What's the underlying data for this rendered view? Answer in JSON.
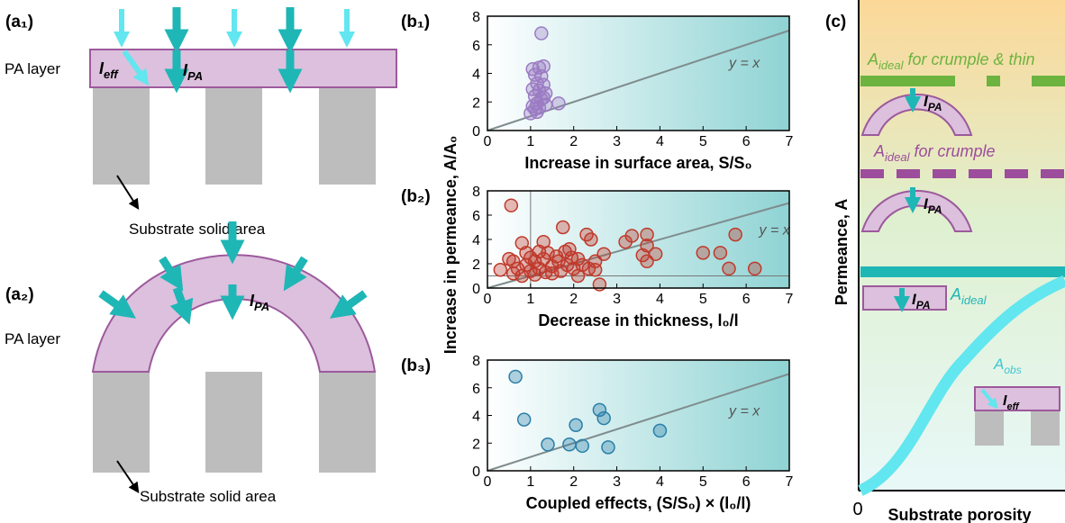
{
  "chart_data": [
    {
      "type": "scatter",
      "panel_label": "(b₁)",
      "x_label": "Increase in surface area, S/S₀",
      "annotation": "y = x",
      "xlim": [
        0,
        7
      ],
      "ylim": [
        0,
        8
      ],
      "xticks": [
        0,
        1,
        2,
        3,
        4,
        5,
        6,
        7
      ],
      "yticks": [
        0,
        2,
        4,
        6,
        8
      ],
      "series": [
        {
          "color": "#9b7bc4",
          "x": [
            1.25,
            1.05,
            1.2,
            1.3,
            1.1,
            1.25,
            1.15,
            1.3,
            1.05,
            1.2,
            1.35,
            1.1,
            1.25,
            1.3,
            1.15,
            1.05,
            1.2,
            1.35,
            1.65,
            1.0,
            1.15,
            1.1
          ],
          "values": [
            6.8,
            4.3,
            4.4,
            4.5,
            3.9,
            3.8,
            3.3,
            3.2,
            2.9,
            2.8,
            2.6,
            2.4,
            2.2,
            2.3,
            1.9,
            1.7,
            1.6,
            1.8,
            1.9,
            1.2,
            1.3,
            1.5
          ]
        }
      ]
    },
    {
      "type": "scatter",
      "panel_label": "(b₂)",
      "x_label": "Decrease in thickness, l₀/l",
      "y_label": "Increase in permeance, A/A₀",
      "annotation": "y = x",
      "xlim": [
        0,
        7
      ],
      "ylim": [
        0,
        8
      ],
      "xticks": [
        0,
        1,
        2,
        3,
        4,
        5,
        6,
        7
      ],
      "yticks": [
        0,
        2,
        4,
        6,
        8
      ],
      "reference_lines": {
        "x": 1,
        "y": 1
      },
      "series": [
        {
          "color": "#c0392b",
          "x": [
            0.55,
            0.3,
            0.5,
            0.6,
            0.6,
            0.7,
            0.8,
            0.8,
            0.9,
            0.9,
            1.0,
            1.0,
            1.1,
            1.1,
            1.2,
            1.2,
            1.3,
            1.3,
            1.35,
            1.4,
            1.5,
            1.5,
            1.6,
            1.65,
            1.7,
            1.75,
            1.8,
            1.85,
            1.9,
            1.95,
            2.0,
            2.1,
            2.1,
            2.2,
            2.3,
            2.35,
            2.4,
            2.5,
            2.5,
            2.6,
            2.7,
            3.2,
            3.35,
            3.6,
            3.7,
            3.7,
            3.7,
            3.9,
            5.0,
            5.4,
            5.6,
            5.75,
            6.2
          ],
          "values": [
            6.8,
            1.5,
            2.4,
            2.2,
            1.2,
            1.6,
            3.7,
            1.0,
            2.9,
            1.9,
            2.5,
            1.4,
            1.1,
            2.2,
            3.0,
            1.6,
            2.4,
            3.8,
            1.3,
            2.9,
            1.8,
            1.2,
            2.6,
            2.2,
            1.4,
            5.0,
            3.0,
            1.9,
            3.2,
            2.5,
            1.6,
            2.4,
            1.0,
            1.9,
            4.4,
            1.6,
            4.0,
            2.2,
            1.5,
            0.3,
            2.8,
            3.8,
            4.3,
            2.7,
            2.2,
            3.5,
            4.4,
            2.8,
            2.9,
            2.9,
            1.6,
            4.4,
            1.6
          ]
        }
      ]
    },
    {
      "type": "scatter",
      "panel_label": "(b₃)",
      "x_label": "Coupled effects, (S/S₀) × (l₀/l)",
      "annotation": "y = x",
      "xlim": [
        0,
        7
      ],
      "ylim": [
        0,
        8
      ],
      "xticks": [
        0,
        1,
        2,
        3,
        4,
        5,
        6,
        7
      ],
      "yticks": [
        0,
        2,
        4,
        6,
        8
      ],
      "series": [
        {
          "color": "#2a7fa8",
          "x": [
            0.65,
            0.85,
            1.4,
            1.9,
            2.05,
            2.2,
            2.6,
            2.7,
            2.8,
            4.0
          ],
          "values": [
            6.8,
            3.7,
            1.9,
            1.9,
            3.3,
            1.8,
            4.4,
            3.8,
            1.7,
            2.9
          ]
        }
      ]
    }
  ],
  "panel_a": {
    "label_a1": "(a₁)",
    "label_a2": "(a₂)",
    "layer_1": "PA layer",
    "layer_2": "PA layer",
    "ieff": {
      "base": "I",
      "sub": "eff"
    },
    "ipa_1": {
      "base": "I",
      "sub": "PA"
    },
    "ipa_2": {
      "base": "I",
      "sub": "PA"
    },
    "substrate_1": "Substrate solid area",
    "substrate_2": "Substrate solid area"
  },
  "panel_c": {
    "label": "(c)",
    "y_label": "Permeance, A",
    "x_label": "Substrate porosity",
    "origin": "0",
    "ideal_thin": {
      "base": "A",
      "sub": "ideal",
      "rest": " for crumple & thin"
    },
    "ideal_crumple": {
      "base": "A",
      "sub": "ideal",
      "rest": " for crumple"
    },
    "ideal": {
      "base": "A",
      "sub": "ideal"
    },
    "obs": {
      "base": "A",
      "sub": "obs"
    },
    "ipa_1": {
      "base": "I",
      "sub": "PA"
    },
    "ipa_2": {
      "base": "I",
      "sub": "PA"
    },
    "ipa_3": {
      "base": "I",
      "sub": "PA"
    },
    "ieff": {
      "base": "I",
      "sub": "eff"
    }
  }
}
